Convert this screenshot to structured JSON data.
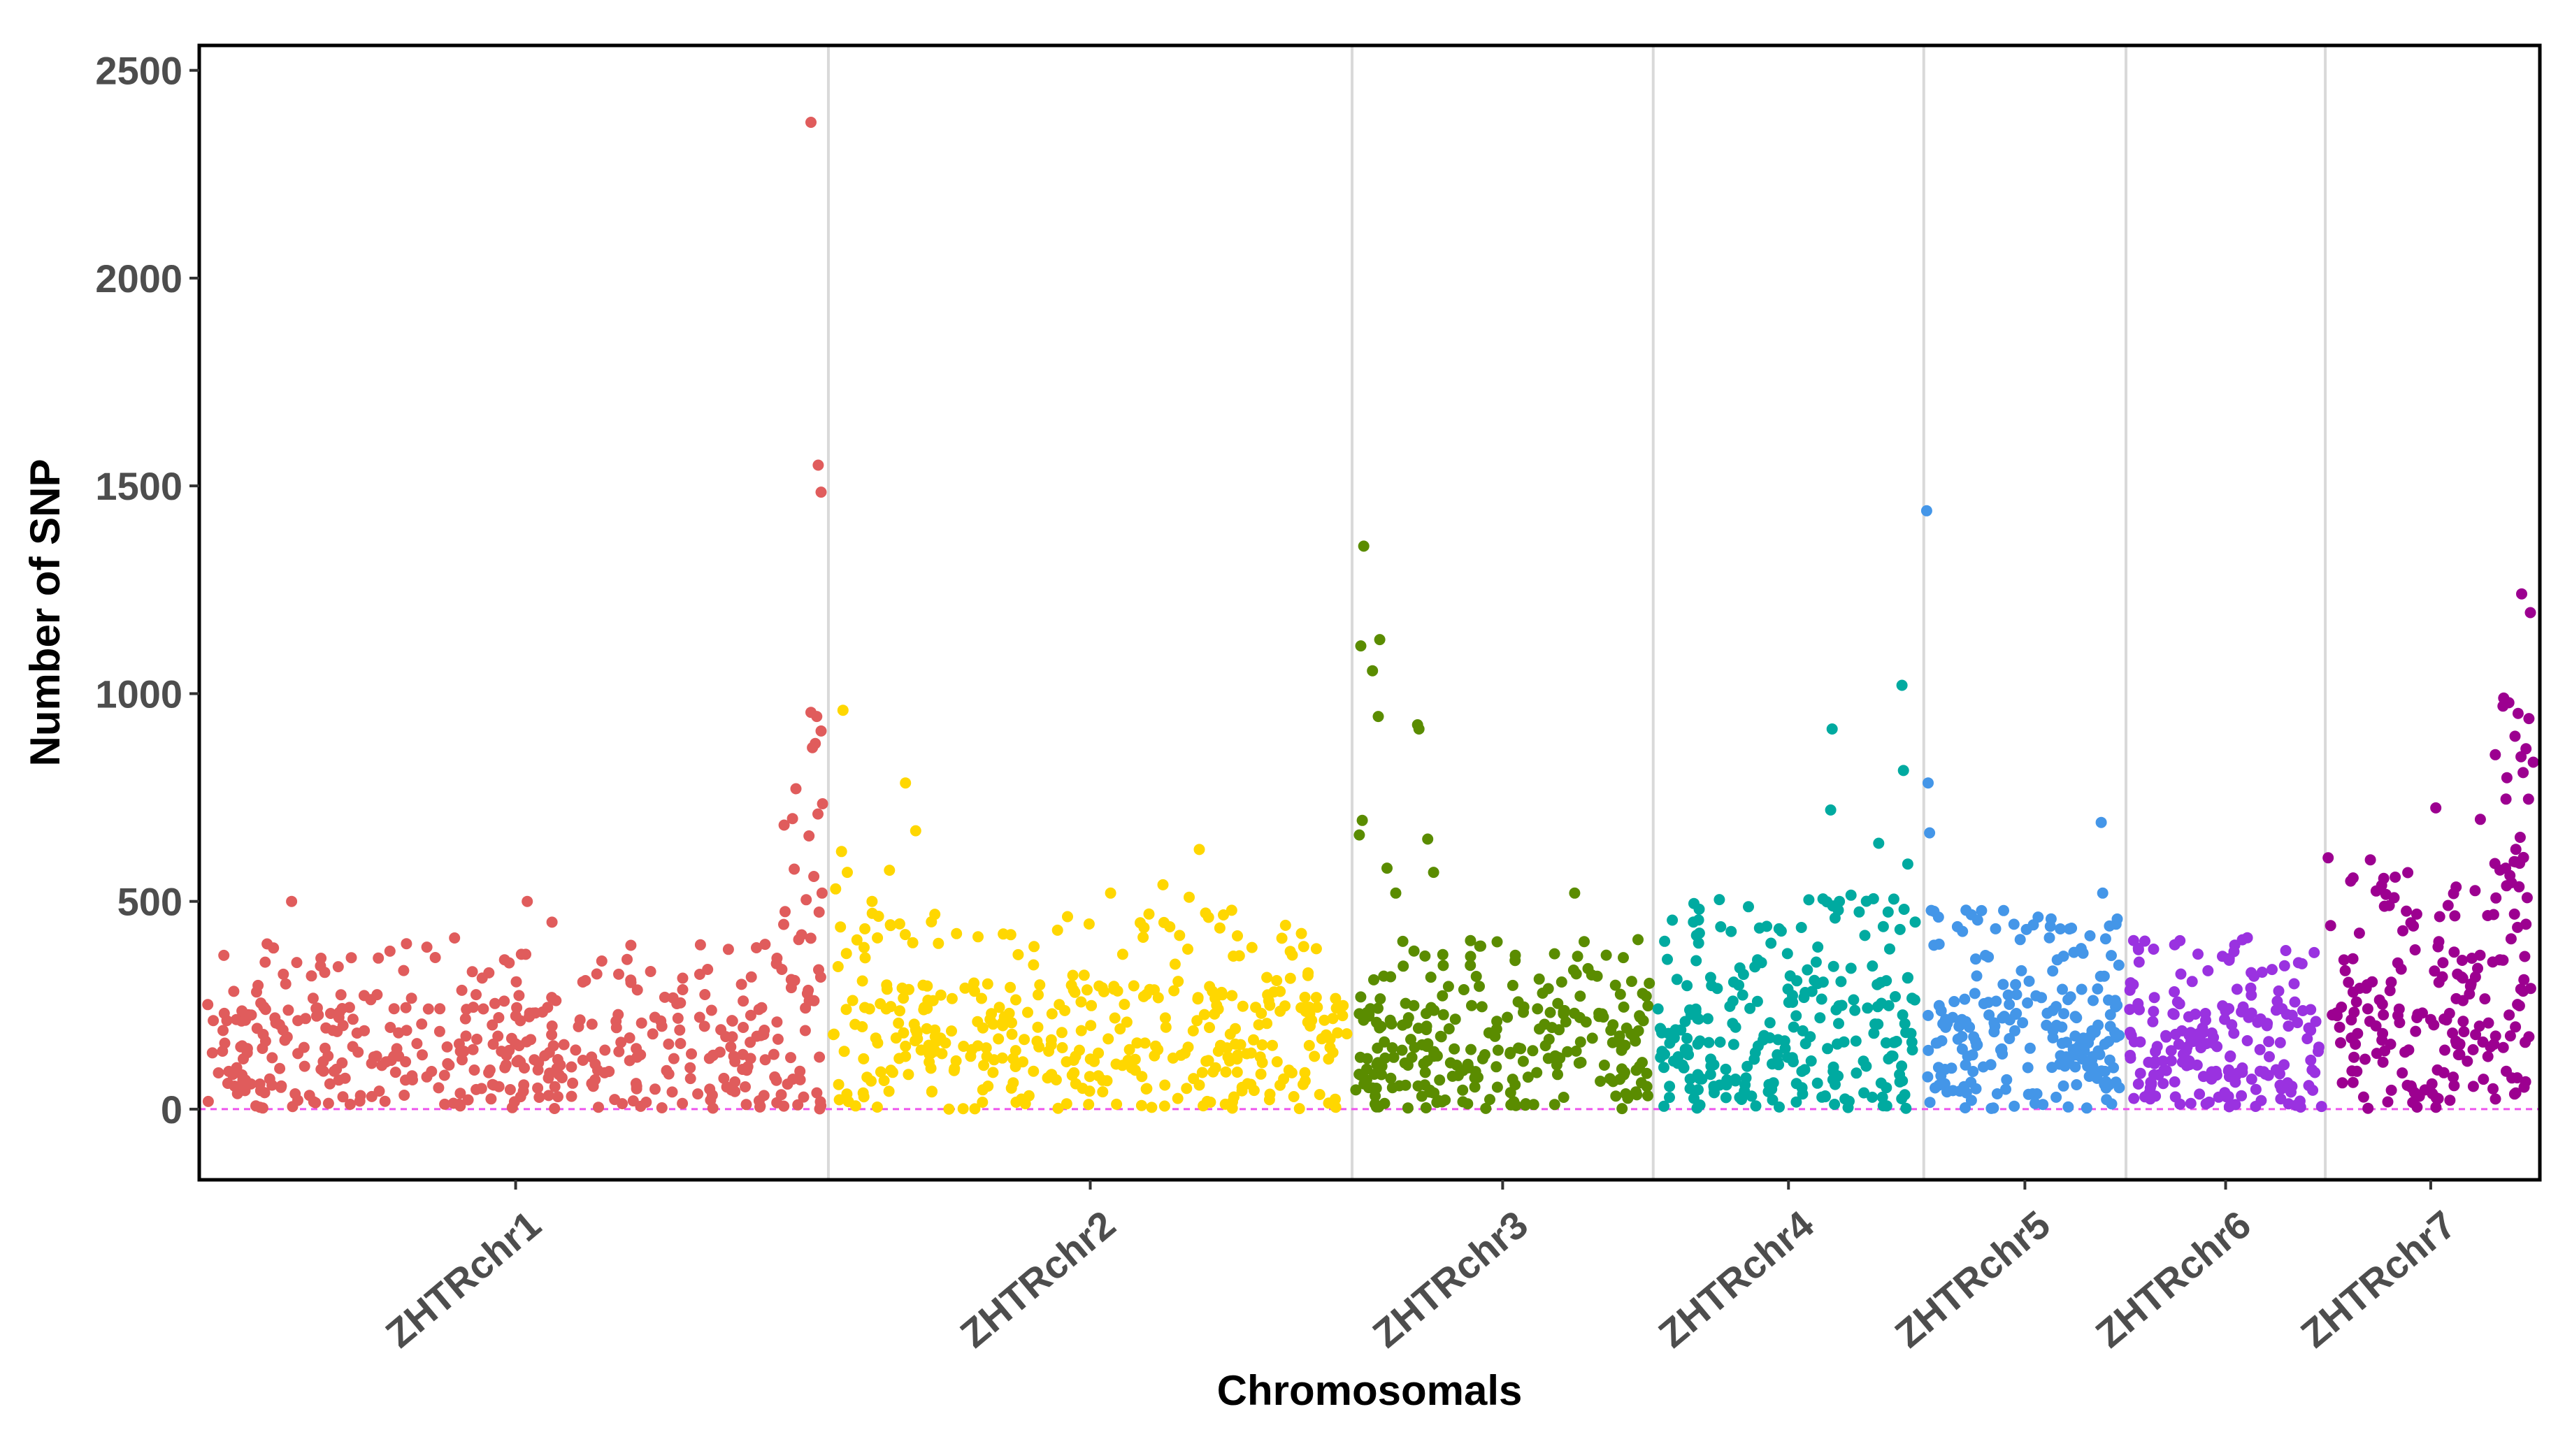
{
  "chart_data": {
    "type": "scatter",
    "title": "",
    "xlabel": "Chromosomals",
    "ylabel": "Number of SNP",
    "ylim": [
      -170,
      2560
    ],
    "yticks": [
      0,
      500,
      1000,
      1500,
      2000,
      2500
    ],
    "ytick_labels": [
      "0",
      "500",
      "1000",
      "1500",
      "2000",
      "2500"
    ],
    "reference_line": {
      "y": 0,
      "style": "dashed",
      "color": "#ee55ee"
    },
    "legend": "none",
    "grid": "vertical separators between chromosomes",
    "seed": 20240611,
    "chromosomes": [
      {
        "name": "ZHTRchr1",
        "color": "#e05c5c",
        "start": 0,
        "end": 43,
        "n_points": 440,
        "baseline_max": 250,
        "tail_start": 39.8,
        "tail_max": 520,
        "highlight_points": [
          {
            "x": 41.8,
            "y": 2375
          },
          {
            "x": 42.3,
            "y": 1550
          },
          {
            "x": 42.5,
            "y": 1485
          },
          {
            "x": 41.8,
            "y": 955
          },
          {
            "x": 42.2,
            "y": 945
          },
          {
            "x": 42.5,
            "y": 910
          },
          {
            "x": 41.9,
            "y": 870
          },
          {
            "x": 42.1,
            "y": 880
          },
          {
            "x": 42.6,
            "y": 735
          },
          {
            "x": 42.0,
            "y": 560
          },
          {
            "x": 6.1,
            "y": 500
          },
          {
            "x": 22.3,
            "y": 500
          },
          {
            "x": 24.0,
            "y": 450
          },
          {
            "x": 17.3,
            "y": 412
          },
          {
            "x": 15.4,
            "y": 390
          }
        ]
      },
      {
        "name": "ZHTRchr2",
        "color": "#ffd700",
        "start": 43,
        "end": 79,
        "n_points": 390,
        "baseline_max": 300,
        "tail_start": 43,
        "tail_max": 300,
        "highlight_points": [
          {
            "x": 44.0,
            "y": 960
          },
          {
            "x": 48.3,
            "y": 785
          },
          {
            "x": 49.0,
            "y": 670
          },
          {
            "x": 68.5,
            "y": 625
          },
          {
            "x": 43.9,
            "y": 620
          },
          {
            "x": 47.2,
            "y": 575
          },
          {
            "x": 44.3,
            "y": 570
          },
          {
            "x": 66.0,
            "y": 540
          },
          {
            "x": 43.5,
            "y": 530
          },
          {
            "x": 62.4,
            "y": 520
          },
          {
            "x": 67.8,
            "y": 510
          },
          {
            "x": 46.0,
            "y": 500
          }
        ]
      },
      {
        "name": "ZHTRchr3",
        "color": "#5a8c00",
        "start": 79,
        "end": 99.7,
        "n_points": 260,
        "baseline_max": 260,
        "tail_start": 79,
        "tail_max": 260,
        "highlight_points": [
          {
            "x": 79.8,
            "y": 1355
          },
          {
            "x": 80.9,
            "y": 1130
          },
          {
            "x": 79.6,
            "y": 1115
          },
          {
            "x": 80.4,
            "y": 1055
          },
          {
            "x": 80.8,
            "y": 945
          },
          {
            "x": 83.5,
            "y": 925
          },
          {
            "x": 83.6,
            "y": 915
          },
          {
            "x": 79.7,
            "y": 695
          },
          {
            "x": 79.5,
            "y": 660
          },
          {
            "x": 84.2,
            "y": 650
          },
          {
            "x": 81.4,
            "y": 580
          },
          {
            "x": 84.6,
            "y": 570
          },
          {
            "x": 94.3,
            "y": 520
          },
          {
            "x": 82.0,
            "y": 520
          }
        ]
      },
      {
        "name": "ZHTRchr4",
        "color": "#00aaa0",
        "start": 99.7,
        "end": 118.3,
        "n_points": 250,
        "baseline_max": 320,
        "tail_start": 99.7,
        "tail_max": 320,
        "highlight_points": [
          {
            "x": 116.8,
            "y": 1020
          },
          {
            "x": 112.0,
            "y": 915
          },
          {
            "x": 116.9,
            "y": 815
          },
          {
            "x": 111.9,
            "y": 720
          },
          {
            "x": 115.2,
            "y": 640
          },
          {
            "x": 117.2,
            "y": 590
          },
          {
            "x": 113.3,
            "y": 515
          },
          {
            "x": 112.5,
            "y": 500
          },
          {
            "x": 102.5,
            "y": 495
          },
          {
            "x": 112.2,
            "y": 460
          },
          {
            "x": 107.5,
            "y": 440
          }
        ]
      },
      {
        "name": "ZHTRchr5",
        "color": "#4496e8",
        "start": 118.3,
        "end": 132.2,
        "n_points": 210,
        "baseline_max": 300,
        "tail_start": 118.3,
        "tail_max": 300,
        "highlight_points": [
          {
            "x": 118.5,
            "y": 1440
          },
          {
            "x": 118.6,
            "y": 785
          },
          {
            "x": 130.5,
            "y": 690
          },
          {
            "x": 118.7,
            "y": 665
          },
          {
            "x": 130.6,
            "y": 520
          },
          {
            "x": 122.0,
            "y": 455
          },
          {
            "x": 124.5,
            "y": 445
          },
          {
            "x": 127.0,
            "y": 440
          },
          {
            "x": 130.8,
            "y": 410
          }
        ]
      },
      {
        "name": "ZHTRchr6",
        "color": "#9a32e0",
        "start": 132.2,
        "end": 145.9,
        "n_points": 200,
        "baseline_max": 260,
        "tail_start": 132.2,
        "tail_max": 260,
        "highlight_points": [
          {
            "x": 134.1,
            "y": 385
          },
          {
            "x": 144.3,
            "y": 350
          },
          {
            "x": 143.1,
            "y": 345
          },
          {
            "x": 141.0,
            "y": 320
          },
          {
            "x": 132.7,
            "y": 300
          }
        ]
      },
      {
        "name": "ZHTRchr7",
        "color": "#9c0090",
        "start": 145.9,
        "end": 160.4,
        "n_points": 200,
        "baseline_max": 360,
        "tail_start": 156.5,
        "tail_max": 620,
        "highlight_points": [
          {
            "x": 159.4,
            "y": 1240
          },
          {
            "x": 160.0,
            "y": 1195
          },
          {
            "x": 159.9,
            "y": 940
          },
          {
            "x": 160.2,
            "y": 835
          },
          {
            "x": 159.5,
            "y": 810
          },
          {
            "x": 153.5,
            "y": 725
          },
          {
            "x": 146.1,
            "y": 605
          },
          {
            "x": 149.0,
            "y": 600
          },
          {
            "x": 158.3,
            "y": 580
          },
          {
            "x": 159.0,
            "y": 595
          },
          {
            "x": 158.7,
            "y": 545
          },
          {
            "x": 149.4,
            "y": 525
          },
          {
            "x": 150.3,
            "y": 490
          },
          {
            "x": 159.7,
            "y": 445
          }
        ]
      }
    ]
  }
}
